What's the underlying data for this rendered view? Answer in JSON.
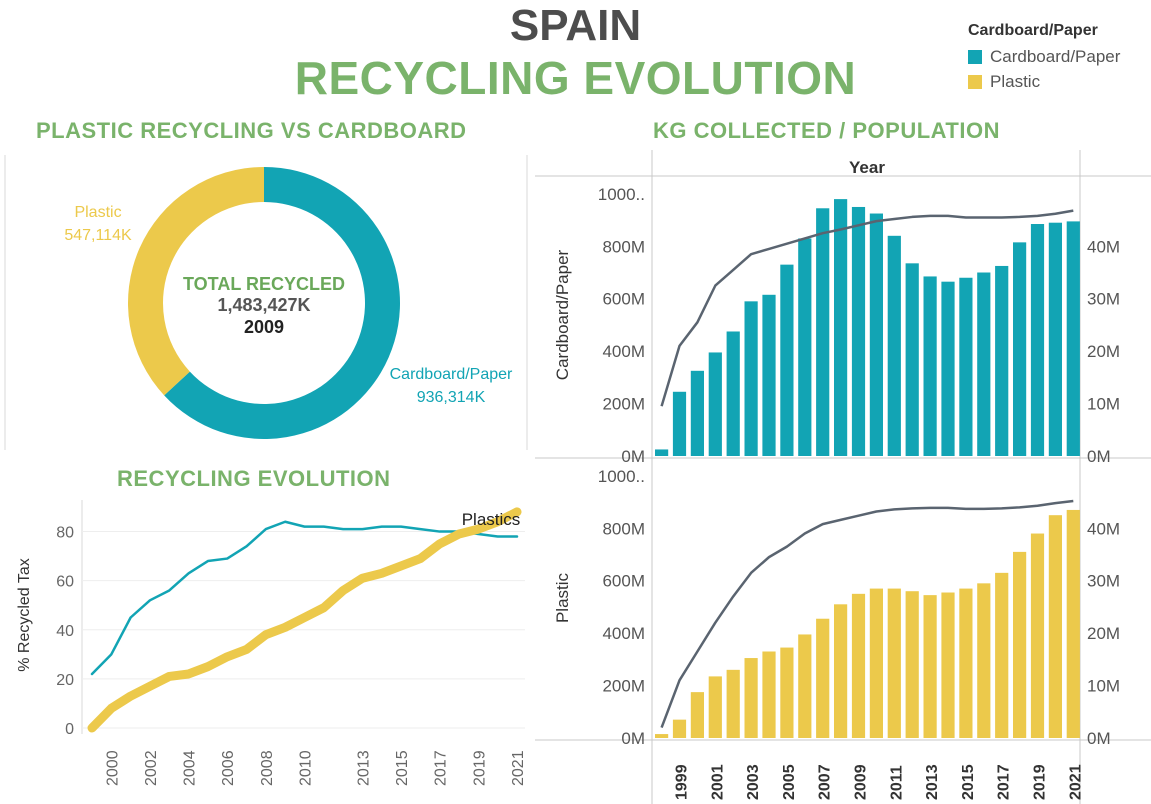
{
  "header": {
    "title": "SPAIN",
    "subtitle": "RECYCLING EVOLUTION"
  },
  "legend": {
    "title": "Cardboard/Paper",
    "items": [
      {
        "label": "Cardboard/Paper",
        "color": "#12a4b4"
      },
      {
        "label": "Plastic",
        "color": "#ecc94b"
      }
    ]
  },
  "colors": {
    "cardboard": "#12a4b4",
    "plastic": "#ecc94b",
    "population_line": "#5a6470",
    "title_green": "#7ab36b"
  },
  "chart_data": [
    {
      "type": "pie",
      "title": "PLASTIC RECYCLING VS CARDBOARD",
      "center_label": "TOTAL RECYCLED",
      "center_value": "1,483,427K",
      "center_year": "2009",
      "slices": [
        {
          "name": "Cardboard/Paper",
          "value": 936314,
          "label": "936,314K"
        },
        {
          "name": "Plastic",
          "value": 547114,
          "label": "547,114K"
        }
      ]
    },
    {
      "type": "line",
      "title": "RECYCLING EVOLUTION",
      "ylabel": "% Recycled Tax",
      "ylim": [
        0,
        90
      ],
      "yticks": [
        "0",
        "20",
        "40",
        "60",
        "80"
      ],
      "xticks": [
        "2000",
        "2002",
        "2004",
        "2006",
        "2008",
        "2010",
        "2013",
        "2015",
        "2017",
        "2019",
        "2021"
      ],
      "annotation": "Plastics",
      "x": [
        1999,
        2000,
        2001,
        2002,
        2003,
        2004,
        2005,
        2006,
        2007,
        2008,
        2009,
        2010,
        2011,
        2012,
        2013,
        2014,
        2015,
        2016,
        2017,
        2018,
        2019,
        2020,
        2021
      ],
      "series": [
        {
          "values": [
            22,
            30,
            45,
            52,
            56,
            63,
            68,
            69,
            74,
            81,
            84,
            82,
            82,
            81,
            81,
            82,
            82,
            81,
            80,
            80,
            79,
            78,
            78
          ]
        },
        {
          "values": [
            0,
            8,
            13,
            17,
            21,
            22,
            25,
            29,
            32,
            38,
            41,
            45,
            49,
            56,
            61,
            63,
            66,
            69,
            75,
            79,
            81,
            84,
            88
          ]
        }
      ]
    },
    {
      "type": "bar",
      "title": "KG COLLECTED / POPULATION",
      "xlabel": "Year",
      "ylabel": "Cardboard/Paper",
      "yticks_left": [
        "0M",
        "200M",
        "400M",
        "600M",
        "800M",
        "1000.."
      ],
      "yticks_right": [
        "0M",
        "10M",
        "20M",
        "30M",
        "40M"
      ],
      "ylim_left": [
        0,
        1030
      ],
      "ylim_right": [
        0,
        51.5
      ],
      "x": [
        1998,
        1999,
        2000,
        2001,
        2002,
        2003,
        2004,
        2005,
        2006,
        2007,
        2008,
        2009,
        2010,
        2011,
        2012,
        2013,
        2014,
        2015,
        2016,
        2017,
        2018,
        2019,
        2020,
        2021
      ],
      "values": [
        25,
        245,
        325,
        395,
        475,
        590,
        615,
        730,
        830,
        945,
        980,
        950,
        925,
        840,
        735,
        685,
        665,
        680,
        700,
        725,
        815,
        885,
        890,
        895
      ],
      "population": [
        9.5,
        21,
        25.5,
        32.5,
        35.5,
        38.5,
        39.5,
        40.5,
        41.5,
        42.5,
        43.2,
        44,
        44.8,
        45.2,
        45.6,
        45.8,
        45.8,
        45.5,
        45.5,
        45.5,
        45.6,
        45.8,
        46.2,
        46.8
      ]
    },
    {
      "type": "bar",
      "xlabel": "",
      "ylabel": "Plastic",
      "yticks_left": [
        "0M",
        "200M",
        "400M",
        "600M",
        "800M",
        "1000.."
      ],
      "yticks_right": [
        "0M",
        "10M",
        "20M",
        "30M",
        "40M"
      ],
      "xticks": [
        "1999",
        "2001",
        "2003",
        "2005",
        "2007",
        "2009",
        "2011",
        "2013",
        "2015",
        "2017",
        "2019",
        "2021"
      ],
      "ylim_left": [
        0,
        1030
      ],
      "ylim_right": [
        0,
        51.5
      ],
      "x": [
        1998,
        1999,
        2000,
        2001,
        2002,
        2003,
        2004,
        2005,
        2006,
        2007,
        2008,
        2009,
        2010,
        2011,
        2012,
        2013,
        2014,
        2015,
        2016,
        2017,
        2018,
        2019,
        2020,
        2021
      ],
      "values": [
        15,
        70,
        175,
        235,
        260,
        305,
        330,
        345,
        395,
        455,
        510,
        550,
        570,
        570,
        560,
        545,
        555,
        570,
        590,
        630,
        710,
        780,
        850,
        870
      ],
      "population": [
        2,
        11,
        16.5,
        22,
        27,
        31.5,
        34.5,
        36.5,
        39,
        40.8,
        41.6,
        42.4,
        43.2,
        43.6,
        43.8,
        43.9,
        43.9,
        43.7,
        43.7,
        43.8,
        44,
        44.3,
        44.8,
        45.2
      ]
    }
  ]
}
